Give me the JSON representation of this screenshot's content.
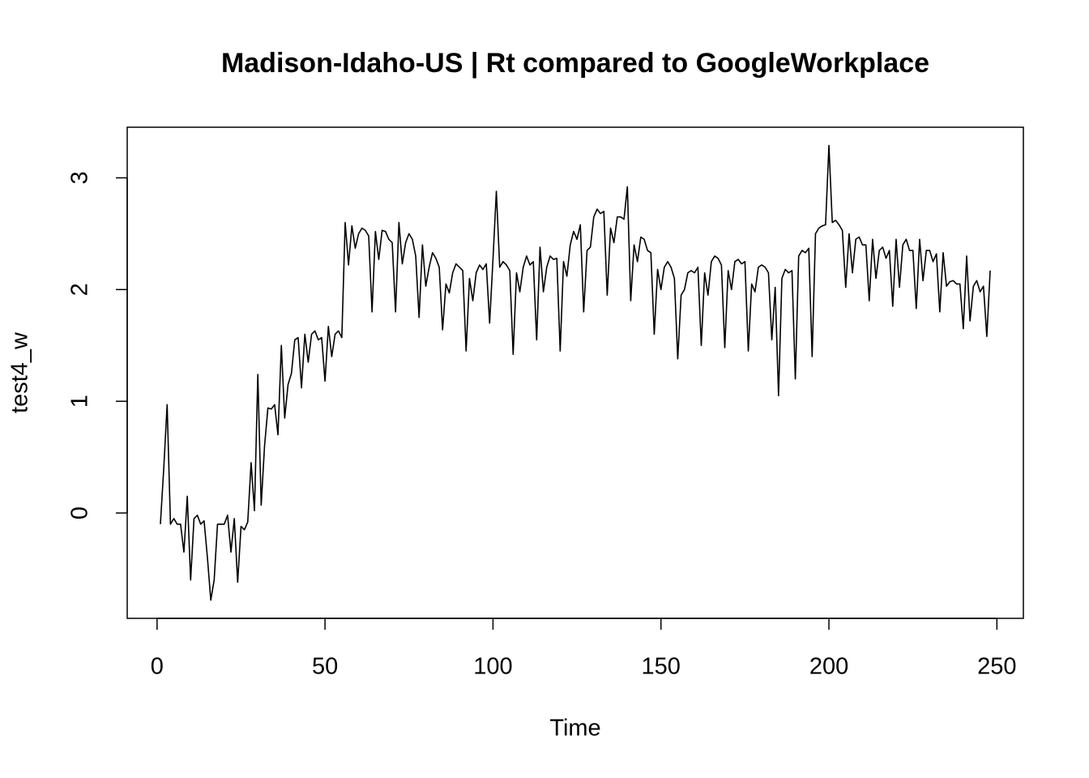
{
  "chart_data": {
    "type": "line",
    "title": "Madison-Idaho-US | Rt compared to GoogleWorkplace",
    "x_label": "Time",
    "y_label": "test4_w",
    "x": [
      1,
      2,
      3,
      4,
      5,
      6,
      7,
      8,
      9,
      10,
      11,
      12,
      13,
      14,
      15,
      16,
      17,
      18,
      19,
      20,
      21,
      22,
      23,
      24,
      25,
      26,
      27,
      28,
      29,
      30,
      31,
      32,
      33,
      34,
      35,
      36,
      37,
      38,
      39,
      40,
      41,
      42,
      43,
      44,
      45,
      46,
      47,
      48,
      49,
      50,
      51,
      52,
      53,
      54,
      55,
      56,
      57,
      58,
      59,
      60,
      61,
      62,
      63,
      64,
      65,
      66,
      67,
      68,
      69,
      70,
      71,
      72,
      73,
      74,
      75,
      76,
      77,
      78,
      79,
      80,
      81,
      82,
      83,
      84,
      85,
      86,
      87,
      88,
      89,
      90,
      91,
      92,
      93,
      94,
      95,
      96,
      97,
      98,
      99,
      100,
      101,
      102,
      103,
      104,
      105,
      106,
      107,
      108,
      109,
      110,
      111,
      112,
      113,
      114,
      115,
      116,
      117,
      118,
      119,
      120,
      121,
      122,
      123,
      124,
      125,
      126,
      127,
      128,
      129,
      130,
      131,
      132,
      133,
      134,
      135,
      136,
      137,
      138,
      139,
      140,
      141,
      142,
      143,
      144,
      145,
      146,
      147,
      148,
      149,
      150,
      151,
      152,
      153,
      154,
      155,
      156,
      157,
      158,
      159,
      160,
      161,
      162,
      163,
      164,
      165,
      166,
      167,
      168,
      169,
      170,
      171,
      172,
      173,
      174,
      175,
      176,
      177,
      178,
      179,
      180,
      181,
      182,
      183,
      184,
      185,
      186,
      187,
      188,
      189,
      190,
      191,
      192,
      193,
      194,
      195,
      196,
      197,
      198,
      199,
      200,
      201,
      202,
      203,
      204,
      205,
      206,
      207,
      208,
      209,
      210,
      211,
      212,
      213,
      214,
      215,
      216,
      217,
      218,
      219,
      220,
      221,
      222,
      223,
      224,
      225,
      226,
      227,
      228,
      229,
      230,
      231,
      232,
      233,
      234,
      235,
      236,
      237,
      238,
      239,
      240,
      241,
      242,
      243,
      244,
      245,
      246,
      247,
      248
    ],
    "series": [
      {
        "color": "#000000",
        "values": [
          -0.1,
          0.4,
          0.97,
          -0.1,
          -0.05,
          -0.1,
          -0.1,
          -0.35,
          0.15,
          -0.6,
          -0.05,
          -0.02,
          -0.1,
          -0.07,
          -0.4,
          -0.78,
          -0.6,
          -0.1,
          -0.1,
          -0.1,
          -0.02,
          -0.35,
          -0.05,
          -0.62,
          -0.12,
          -0.15,
          -0.08,
          0.45,
          0.02,
          1.24,
          0.07,
          0.6,
          0.94,
          0.93,
          0.97,
          0.7,
          1.5,
          0.85,
          1.15,
          1.25,
          1.55,
          1.57,
          1.12,
          1.6,
          1.35,
          1.6,
          1.63,
          1.55,
          1.57,
          1.18,
          1.67,
          1.4,
          1.6,
          1.63,
          1.57,
          2.6,
          2.22,
          2.57,
          2.37,
          2.5,
          2.55,
          2.53,
          2.48,
          1.8,
          2.52,
          2.27,
          2.53,
          2.52,
          2.45,
          2.42,
          1.8,
          2.6,
          2.23,
          2.42,
          2.5,
          2.45,
          2.3,
          1.75,
          2.4,
          2.03,
          2.2,
          2.33,
          2.28,
          2.2,
          1.64,
          2.05,
          1.97,
          2.15,
          2.23,
          2.2,
          2.17,
          1.45,
          2.1,
          1.9,
          2.15,
          2.22,
          2.18,
          2.23,
          1.7,
          2.27,
          2.88,
          2.2,
          2.25,
          2.22,
          2.17,
          1.42,
          2.15,
          1.98,
          2.2,
          2.3,
          2.22,
          2.25,
          1.55,
          2.38,
          1.98,
          2.2,
          2.3,
          2.27,
          2.28,
          1.45,
          2.25,
          2.12,
          2.4,
          2.52,
          2.45,
          2.58,
          1.8,
          2.35,
          2.38,
          2.65,
          2.72,
          2.68,
          2.7,
          1.95,
          2.55,
          2.42,
          2.65,
          2.65,
          2.63,
          2.92,
          1.9,
          2.4,
          2.25,
          2.47,
          2.45,
          2.35,
          2.33,
          1.6,
          2.18,
          2.0,
          2.2,
          2.25,
          2.2,
          2.1,
          1.38,
          1.95,
          2.0,
          2.15,
          2.17,
          2.15,
          2.2,
          1.5,
          2.15,
          1.95,
          2.25,
          2.3,
          2.28,
          2.22,
          1.48,
          2.17,
          2.0,
          2.25,
          2.27,
          2.23,
          2.25,
          1.45,
          2.05,
          1.98,
          2.2,
          2.22,
          2.2,
          2.15,
          1.55,
          2.02,
          1.05,
          2.1,
          2.18,
          2.15,
          2.17,
          1.2,
          2.3,
          2.35,
          2.33,
          2.37,
          1.4,
          2.5,
          2.55,
          2.57,
          2.58,
          3.29,
          2.6,
          2.62,
          2.58,
          2.53,
          2.02,
          2.5,
          2.15,
          2.45,
          2.47,
          2.4,
          2.4,
          1.9,
          2.45,
          2.1,
          2.35,
          2.38,
          2.28,
          2.35,
          1.85,
          2.45,
          2.02,
          2.4,
          2.45,
          2.35,
          2.35,
          1.83,
          2.45,
          2.08,
          2.35,
          2.35,
          2.25,
          2.32,
          1.8,
          2.33,
          2.03,
          2.07,
          2.08,
          2.05,
          2.05,
          1.65,
          2.3,
          1.72,
          2.03,
          2.08,
          1.98,
          2.03,
          1.58,
          2.17
        ]
      }
    ],
    "xlim": [
      -8.88,
      257.88
    ],
    "ylim": [
      -0.943,
      3.453
    ],
    "xticks": [
      0,
      50,
      100,
      150,
      200,
      250
    ],
    "yticks": [
      0,
      1,
      2,
      3
    ]
  }
}
